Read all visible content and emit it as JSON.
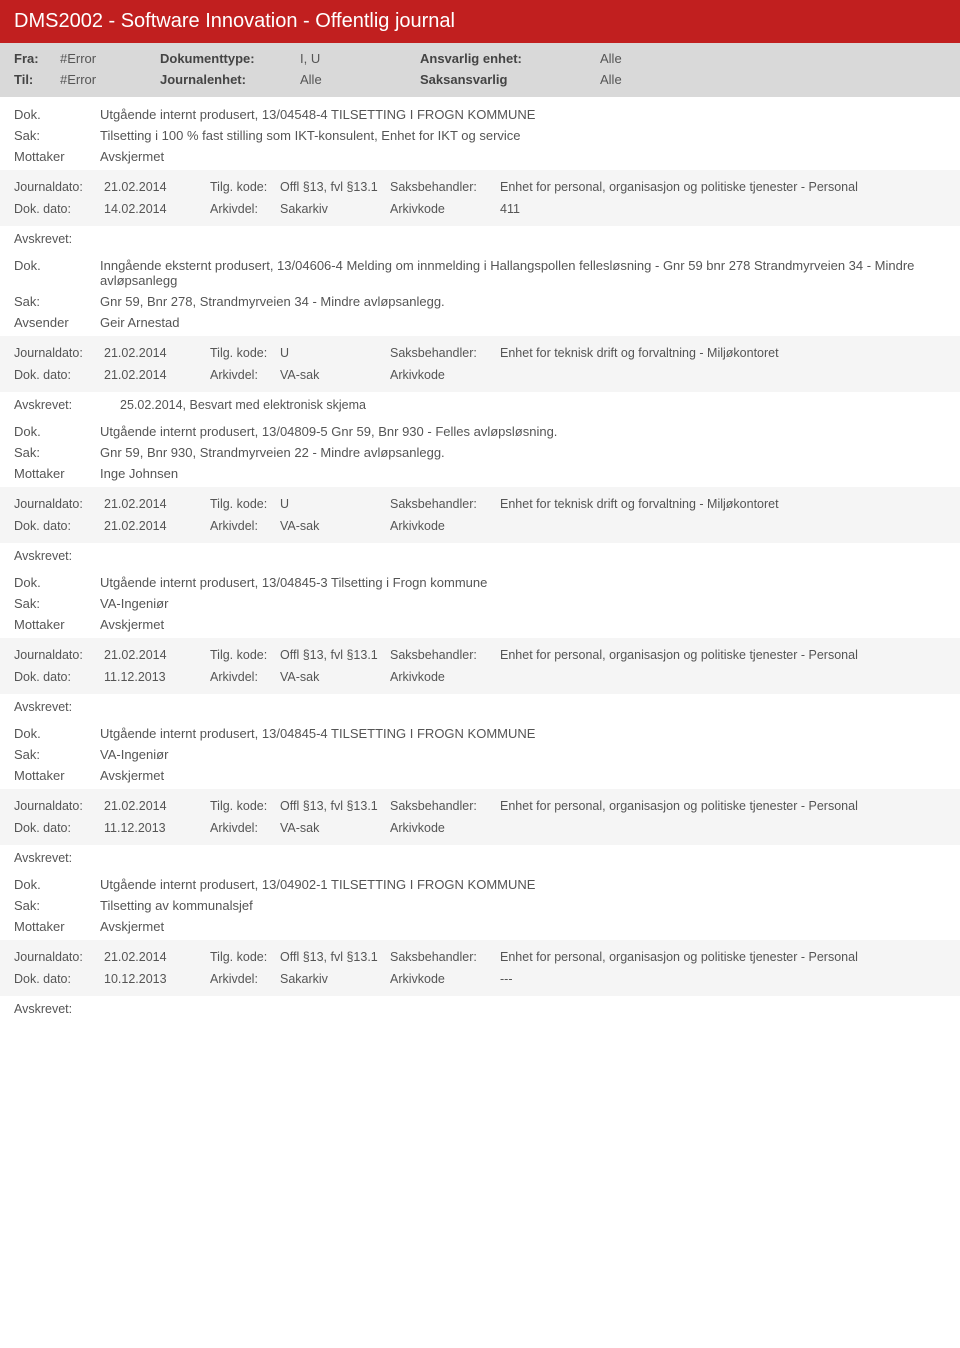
{
  "header": {
    "title": "DMS2002 - Software Innovation - Offentlig journal"
  },
  "filter": {
    "fra_label": "Fra:",
    "fra_value": "#Error",
    "til_label": "Til:",
    "til_value": "#Error",
    "doktype_label": "Dokumenttype:",
    "doktype_value": "I, U",
    "journalenhet_label": "Journalenhet:",
    "journalenhet_value": "Alle",
    "ansvarlig_label": "Ansvarlig enhet:",
    "ansvarlig_value": "Alle",
    "saksansvarlig_label": "Saksansvarlig",
    "saksansvarlig_value": "Alle"
  },
  "labels": {
    "dok": "Dok.",
    "sak": "Sak:",
    "mottaker": "Mottaker",
    "avsender": "Avsender",
    "journaldato": "Journaldato:",
    "tilgkode": "Tilg. kode:",
    "saksbehandler": "Saksbehandler:",
    "dokdato": "Dok. dato:",
    "arkivdel": "Arkivdel:",
    "arkivkode": "Arkivkode",
    "avskrevet": "Avskrevet:"
  },
  "records": [
    {
      "dok": "Utgående internt produsert, 13/04548-4 TILSETTING I FROGN KOMMUNE",
      "sak": "Tilsetting i 100 % fast stilling som IKT-konsulent, Enhet for IKT og service",
      "party_label": "Mottaker",
      "party": "Avskjermet",
      "journaldato": "21.02.2014",
      "tilgkode": "Offl §13, fvl §13.1",
      "saksbehandler": "Enhet for personal, organisasjon og politiske tjenester - Personal",
      "dokdato": "14.02.2014",
      "arkivdel": "Sakarkiv",
      "arkivkode": "411",
      "avskrevet": ""
    },
    {
      "dok": "Inngående eksternt produsert, 13/04606-4 Melding om innmelding i Hallangspollen fellesløsning - Gnr 59 bnr 278 Strandmyrveien 34 - Mindre avløpsanlegg",
      "sak": "Gnr 59, Bnr 278, Strandmyrveien 34 - Mindre avløpsanlegg.",
      "party_label": "Avsender",
      "party": "Geir Arnestad",
      "journaldato": "21.02.2014",
      "tilgkode": "U",
      "saksbehandler": "Enhet for teknisk drift og forvaltning - Miljøkontoret",
      "dokdato": "21.02.2014",
      "arkivdel": "VA-sak",
      "arkivkode": "",
      "avskrevet": "25.02.2014, Besvart med elektronisk skjema"
    },
    {
      "dok": "Utgående internt produsert, 13/04809-5 Gnr 59, Bnr 930 - Felles avløpsløsning.",
      "sak": "Gnr 59, Bnr 930, Strandmyrveien 22 - Mindre avløpsanlegg.",
      "party_label": "Mottaker",
      "party": "Inge Johnsen",
      "journaldato": "21.02.2014",
      "tilgkode": "U",
      "saksbehandler": "Enhet for teknisk drift og forvaltning - Miljøkontoret",
      "dokdato": "21.02.2014",
      "arkivdel": "VA-sak",
      "arkivkode": "",
      "avskrevet": ""
    },
    {
      "dok": "Utgående internt produsert, 13/04845-3 Tilsetting i Frogn kommune",
      "sak": "VA-Ingeniør",
      "party_label": "Mottaker",
      "party": "Avskjermet",
      "journaldato": "21.02.2014",
      "tilgkode": "Offl §13, fvl §13.1",
      "saksbehandler": "Enhet for personal, organisasjon og politiske tjenester - Personal",
      "dokdato": "11.12.2013",
      "arkivdel": "VA-sak",
      "arkivkode": "",
      "avskrevet": ""
    },
    {
      "dok": "Utgående internt produsert, 13/04845-4 TILSETTING I FROGN KOMMUNE",
      "sak": "VA-Ingeniør",
      "party_label": "Mottaker",
      "party": "Avskjermet",
      "journaldato": "21.02.2014",
      "tilgkode": "Offl §13, fvl §13.1",
      "saksbehandler": "Enhet for personal, organisasjon og politiske tjenester - Personal",
      "dokdato": "11.12.2013",
      "arkivdel": "VA-sak",
      "arkivkode": "",
      "avskrevet": ""
    },
    {
      "dok": "Utgående internt produsert, 13/04902-1 TILSETTING I FROGN KOMMUNE",
      "sak": "Tilsetting  av kommunalsjef",
      "party_label": "Mottaker",
      "party": "Avskjermet",
      "journaldato": "21.02.2014",
      "tilgkode": "Offl §13, fvl §13.1",
      "saksbehandler": "Enhet for personal, organisasjon og politiske tjenester - Personal",
      "dokdato": "10.12.2013",
      "arkivdel": "Sakarkiv",
      "arkivkode": "---",
      "avskrevet": ""
    }
  ]
}
